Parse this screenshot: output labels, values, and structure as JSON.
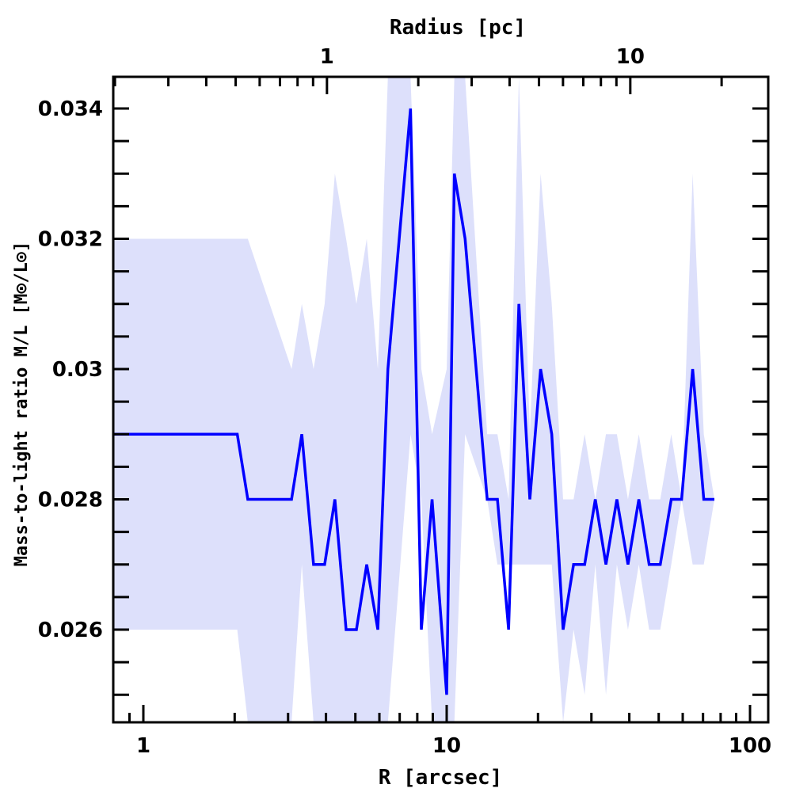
{
  "chart_data": {
    "type": "line",
    "title": "",
    "xlabel": "R [arcsec]",
    "x2label": "Radius [pc]",
    "ylabel": "Mass-to-light ratio M/L [M⊙/L⊙]",
    "xscale": "log",
    "xlim": [
      0.8,
      115
    ],
    "ylim": [
      0.0245,
      0.0345
    ],
    "arcsec_per_pc": 4.03,
    "xticks": [
      "1",
      "10",
      "100"
    ],
    "x2ticks": [
      "1",
      "10"
    ],
    "yticks": [
      "0.026",
      "0.028",
      "0.03",
      "0.032",
      "0.034"
    ],
    "grid": false,
    "line_color": "#0000ff",
    "band_color": "#dde0fb",
    "series": [
      {
        "name": "M/L",
        "x": [
          0.8,
          2.04,
          2.21,
          3.08,
          3.33,
          3.64,
          3.96,
          4.28,
          4.66,
          5.04,
          5.45,
          5.93,
          6.4,
          7.6,
          8.25,
          8.95,
          10,
          10.6,
          11.5,
          13.6,
          14.7,
          16,
          17.3,
          18.8,
          20.4,
          22.2,
          24.2,
          26.2,
          28.5,
          30.9,
          33.5,
          36.4,
          39.6,
          43,
          46.5,
          50.6,
          55,
          59.5,
          64.7,
          70.4,
          76.3
        ],
        "y": [
          0.029,
          0.029,
          0.028,
          0.028,
          0.029,
          0.027,
          0.027,
          0.028,
          0.026,
          0.026,
          0.027,
          0.026,
          0.03,
          0.034,
          0.026,
          0.028,
          0.025,
          0.033,
          0.032,
          0.028,
          0.028,
          0.026,
          0.031,
          0.028,
          0.03,
          0.029,
          0.026,
          0.027,
          0.027,
          0.028,
          0.027,
          0.028,
          0.027,
          0.028,
          0.027,
          0.027,
          0.028,
          0.028,
          0.03,
          0.028,
          0.028
        ],
        "upper": [
          0.032,
          0.032,
          0.032,
          0.03,
          0.031,
          0.03,
          0.031,
          0.033,
          0.032,
          0.031,
          0.032,
          0.03,
          0.0345,
          0.0345,
          0.03,
          0.029,
          0.03,
          0.0345,
          0.0345,
          0.029,
          0.029,
          0.028,
          0.0345,
          0.029,
          0.033,
          0.031,
          0.028,
          0.028,
          0.029,
          0.028,
          0.029,
          0.029,
          0.028,
          0.029,
          0.028,
          0.028,
          0.029,
          0.028,
          0.033,
          0.029,
          0.028
        ],
        "lower": [
          0.026,
          0.026,
          0.0245,
          0.0245,
          0.027,
          0.0245,
          0.0245,
          0.0245,
          0.0245,
          0.0245,
          0.0245,
          0.0245,
          0.0245,
          0.029,
          0.028,
          0.0245,
          0.0245,
          0.0245,
          0.029,
          0.028,
          0.027,
          0.027,
          0.027,
          0.027,
          0.027,
          0.027,
          0.0245,
          0.026,
          0.025,
          0.027,
          0.025,
          0.027,
          0.026,
          0.027,
          0.026,
          0.026,
          0.027,
          0.028,
          0.027,
          0.027,
          0.028
        ]
      }
    ]
  }
}
